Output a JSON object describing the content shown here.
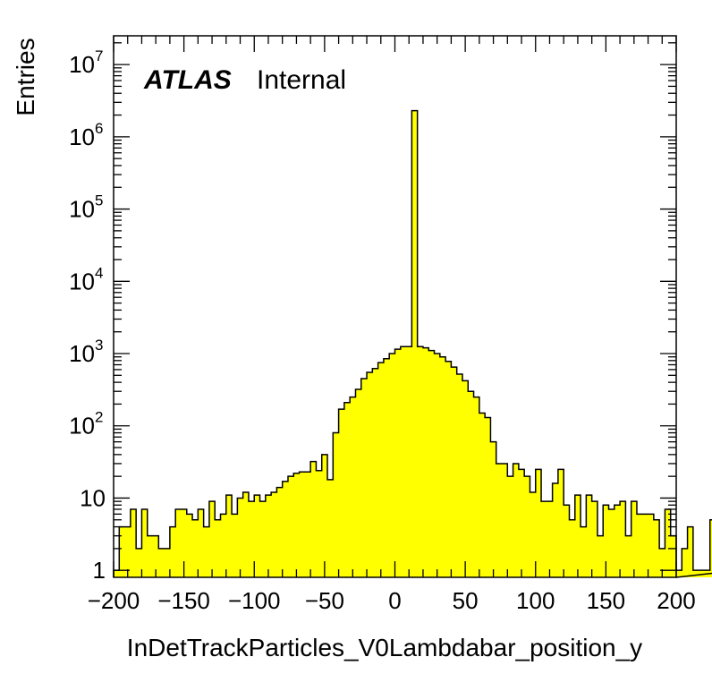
{
  "chart_data": {
    "type": "bar",
    "xlabel": "InDetTrackParticles_V0Lambdabar_position_y",
    "ylabel": "Entries",
    "x_range": [
      -200,
      200
    ],
    "y_scale": "log",
    "y_range": [
      0.8,
      25000000
    ],
    "bin_width": 4,
    "x_ticks": [
      -200,
      -150,
      -100,
      -50,
      0,
      50,
      100,
      150,
      200
    ],
    "x_tick_labels": [
      "−200",
      "−150",
      "−100",
      "−50",
      "0",
      "50",
      "100",
      "150",
      "200"
    ],
    "y_ticks": [
      {
        "value": 1,
        "base": "1",
        "exp": ""
      },
      {
        "value": 10,
        "base": "10",
        "exp": ""
      },
      {
        "value": 100,
        "base": "10",
        "exp": "2"
      },
      {
        "value": 1000,
        "base": "10",
        "exp": "3"
      },
      {
        "value": 10000,
        "base": "10",
        "exp": "4"
      },
      {
        "value": 100000,
        "base": "10",
        "exp": "5"
      },
      {
        "value": 1000000,
        "base": "10",
        "exp": "6"
      },
      {
        "value": 10000000,
        "base": "10",
        "exp": "7"
      }
    ],
    "label_atlas": "ATLAS",
    "label_status": "Internal",
    "fill_color": "#ffff00",
    "line_color": "#000000",
    "values": [
      1,
      4,
      4,
      7,
      2,
      7,
      3,
      3,
      2,
      2,
      4,
      7,
      7,
      6,
      5,
      7,
      4,
      9,
      5,
      6,
      11,
      6,
      10,
      12,
      9,
      11,
      9,
      11,
      12,
      14,
      17,
      20,
      22,
      23,
      23,
      32,
      24,
      40,
      18,
      80,
      170,
      210,
      250,
      320,
      450,
      550,
      620,
      750,
      850,
      1000,
      1150,
      1250,
      1250,
      2300000,
      1250,
      1200,
      1100,
      1000,
      900,
      780,
      650,
      520,
      420,
      300,
      250,
      150,
      130,
      60,
      30,
      30,
      20,
      30,
      25,
      20,
      12,
      25,
      9,
      9,
      16,
      25,
      8,
      5,
      11,
      4,
      11,
      9,
      3,
      8,
      7,
      8,
      9,
      3,
      9,
      6,
      6,
      6,
      5,
      2,
      7,
      3,
      1,
      2,
      4,
      1,
      1,
      1,
      5,
      2,
      5,
      1,
      1
    ]
  }
}
